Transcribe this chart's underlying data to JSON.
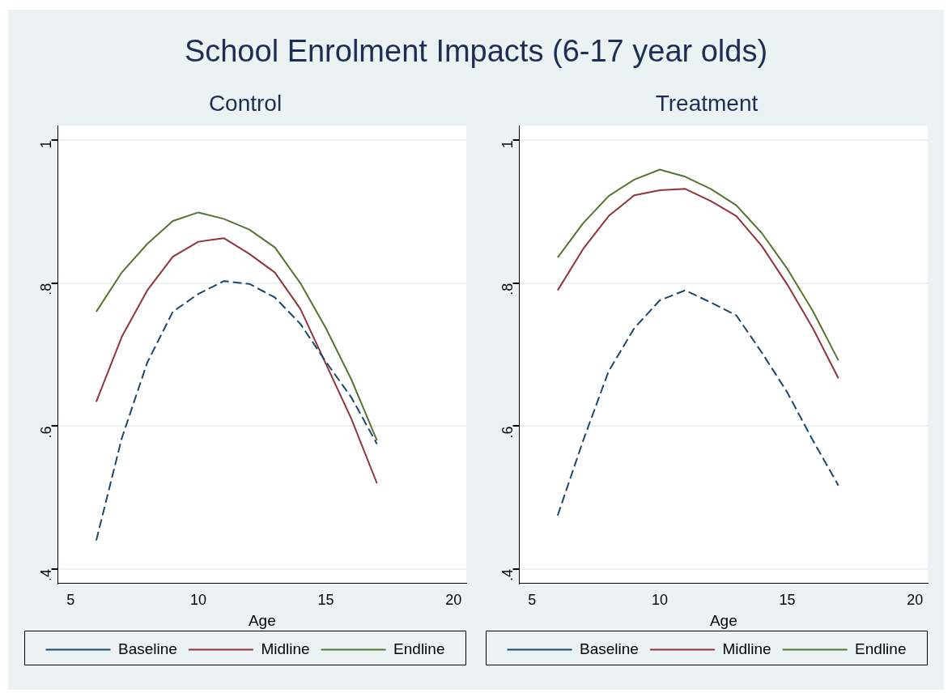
{
  "chart_data": [
    {
      "type": "line",
      "title": "School Enrolment Impacts (6-17 year olds)",
      "subtitle": "Control",
      "xlabel": "Age",
      "x": [
        6,
        7,
        8,
        9,
        10,
        11,
        12,
        13,
        14,
        15,
        16,
        17
      ],
      "series": [
        {
          "name": "Baseline",
          "color": "#1a476f",
          "line_style": "dashed",
          "values": [
            0.44,
            0.583,
            0.689,
            0.76,
            0.785,
            0.803,
            0.799,
            0.78,
            0.743,
            0.69,
            0.64,
            0.575
          ]
        },
        {
          "name": "Midline",
          "color": "#90353b",
          "values": [
            0.634,
            0.725,
            0.79,
            0.837,
            0.858,
            0.863,
            0.841,
            0.815,
            0.764,
            0.687,
            0.61,
            0.52
          ]
        },
        {
          "name": "Endline",
          "color": "#55752f",
          "values": [
            0.76,
            0.815,
            0.855,
            0.887,
            0.899,
            0.89,
            0.875,
            0.85,
            0.8,
            0.737,
            0.665,
            0.58
          ]
        }
      ],
      "xlim": [
        4.5,
        20.5
      ],
      "xticks": [
        5,
        10,
        15,
        20
      ],
      "ylim": [
        0.38,
        1.02
      ],
      "yticks": [
        {
          "value": 0.4,
          "label": ".4"
        },
        {
          "value": 0.6,
          "label": ".6"
        },
        {
          "value": 0.8,
          "label": ".8"
        },
        1
      ],
      "grid": "y",
      "legend": "bottom",
      "marker": "none"
    },
    {
      "type": "line",
      "subtitle": "Treatment",
      "xlabel": "Age",
      "x": [
        6,
        7,
        8,
        9,
        10,
        11,
        12,
        13,
        14,
        15,
        16,
        17
      ],
      "series": [
        {
          "name": "Baseline",
          "color": "#1a476f",
          "line_style": "dashed",
          "values": [
            0.475,
            0.58,
            0.677,
            0.737,
            0.776,
            0.79,
            0.773,
            0.755,
            0.703,
            0.647,
            0.58,
            0.517
          ]
        },
        {
          "name": "Midline",
          "color": "#90353b",
          "values": [
            0.79,
            0.848,
            0.894,
            0.923,
            0.93,
            0.932,
            0.915,
            0.894,
            0.852,
            0.798,
            0.737,
            0.667
          ]
        },
        {
          "name": "Endline",
          "color": "#55752f",
          "values": [
            0.836,
            0.884,
            0.922,
            0.945,
            0.959,
            0.949,
            0.932,
            0.909,
            0.87,
            0.82,
            0.761,
            0.692
          ]
        }
      ],
      "xlim": [
        4.5,
        20.5
      ],
      "xticks": [
        5,
        10,
        15,
        20
      ],
      "ylim": [
        0.38,
        1.02
      ],
      "yticks": [
        {
          "value": 0.4,
          "label": ".4"
        },
        {
          "value": 0.6,
          "label": ".6"
        },
        {
          "value": 0.8,
          "label": ".8"
        },
        1
      ],
      "grid": "y",
      "legend": "bottom",
      "marker": "none"
    }
  ]
}
